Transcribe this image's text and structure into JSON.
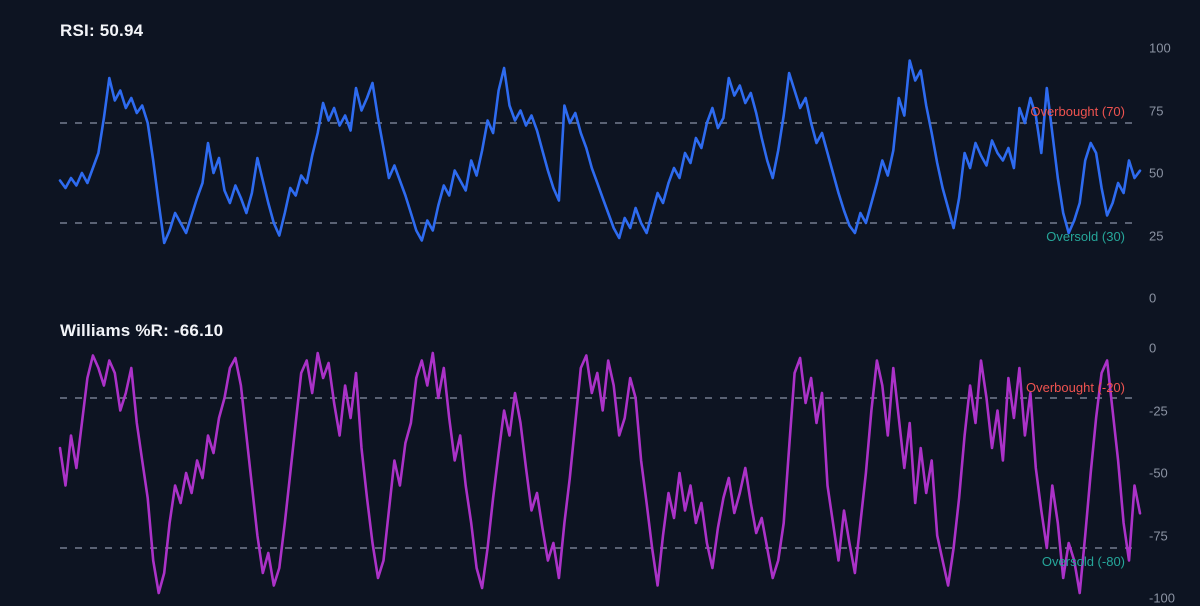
{
  "colors": {
    "background": "#0d1422",
    "rsi_line": "#2e6bf0",
    "williams_line": "#ab32c8",
    "overbought_label": "#ef5350",
    "oversold_label": "#26a69a",
    "tick": "#8b93a3",
    "grid": "#5a6274",
    "title": "#f2f4f8"
  },
  "chart_data": [
    {
      "type": "line",
      "title": "RSI: 50.94",
      "series_name": "RSI",
      "last_value": 50.94,
      "line_color": "#2e6bf0",
      "ylim": [
        0,
        100
      ],
      "yticks": [
        100,
        75,
        50,
        25,
        0
      ],
      "grid": "dashed-thresholds-only",
      "legend_position": "none",
      "thresholds": [
        {
          "label": "Overbought (70)",
          "value": 70,
          "color": "#ef5350"
        },
        {
          "label": "Oversold (30)",
          "value": 30,
          "color": "#26a69a"
        }
      ],
      "values": [
        47,
        44,
        48,
        45,
        50,
        46,
        52,
        58,
        72,
        88,
        79,
        83,
        76,
        80,
        74,
        77,
        70,
        55,
        38,
        22,
        27,
        34,
        30,
        26,
        33,
        40,
        46,
        62,
        50,
        56,
        43,
        38,
        45,
        40,
        34,
        42,
        56,
        47,
        38,
        30,
        25,
        34,
        44,
        41,
        49,
        46,
        57,
        66,
        78,
        71,
        76,
        69,
        73,
        67,
        84,
        75,
        80,
        86,
        72,
        60,
        48,
        53,
        47,
        41,
        34,
        27,
        23,
        31,
        27,
        37,
        45,
        41,
        51,
        47,
        43,
        55,
        49,
        59,
        71,
        66,
        83,
        92,
        77,
        71,
        75,
        69,
        73,
        67,
        59,
        51,
        44,
        39,
        77,
        70,
        74,
        66,
        60,
        52,
        46,
        40,
        34,
        28,
        24,
        32,
        28,
        36,
        30,
        26,
        34,
        42,
        38,
        46,
        52,
        48,
        58,
        54,
        64,
        60,
        70,
        76,
        68,
        72,
        88,
        81,
        85,
        78,
        82,
        74,
        64,
        55,
        48,
        59,
        73,
        90,
        83,
        76,
        80,
        70,
        62,
        66,
        58,
        50,
        42,
        35,
        29,
        26,
        34,
        30,
        38,
        46,
        55,
        49,
        59,
        80,
        73,
        95,
        87,
        91,
        77,
        66,
        54,
        44,
        36,
        28,
        40,
        58,
        52,
        62,
        57,
        53,
        63,
        58,
        55,
        60,
        52,
        76,
        70,
        80,
        73,
        58,
        84,
        66,
        48,
        34,
        26,
        31,
        38,
        55,
        62,
        58,
        44,
        33,
        38,
        46,
        42,
        55,
        48,
        50.94
      ]
    },
    {
      "type": "line",
      "title": "Williams %R: -66.10",
      "series_name": "Williams %R",
      "last_value": -66.1,
      "line_color": "#ab32c8",
      "ylim": [
        -100,
        0
      ],
      "yticks": [
        0,
        -25,
        -50,
        -75,
        -100
      ],
      "grid": "dashed-thresholds-only",
      "legend_position": "none",
      "thresholds": [
        {
          "label": "Overbought (-20)",
          "value": -20,
          "color": "#ef5350"
        },
        {
          "label": "Oversold (-80)",
          "value": -80,
          "color": "#26a69a"
        }
      ],
      "values": [
        -40,
        -55,
        -35,
        -48,
        -30,
        -12,
        -3,
        -8,
        -15,
        -5,
        -10,
        -25,
        -18,
        -8,
        -30,
        -45,
        -60,
        -85,
        -98,
        -90,
        -70,
        -55,
        -62,
        -50,
        -58,
        -45,
        -52,
        -35,
        -42,
        -28,
        -20,
        -8,
        -4,
        -15,
        -35,
        -55,
        -75,
        -90,
        -82,
        -95,
        -88,
        -70,
        -50,
        -30,
        -10,
        -5,
        -18,
        -2,
        -12,
        -6,
        -22,
        -35,
        -15,
        -28,
        -10,
        -40,
        -60,
        -78,
        -92,
        -85,
        -65,
        -45,
        -55,
        -38,
        -30,
        -12,
        -5,
        -15,
        -2,
        -20,
        -8,
        -28,
        -45,
        -35,
        -55,
        -70,
        -88,
        -96,
        -80,
        -60,
        -42,
        -25,
        -35,
        -18,
        -30,
        -48,
        -65,
        -58,
        -72,
        -85,
        -78,
        -92,
        -70,
        -52,
        -30,
        -8,
        -3,
        -18,
        -10,
        -25,
        -5,
        -15,
        -35,
        -28,
        -12,
        -20,
        -45,
        -62,
        -80,
        -95,
        -75,
        -58,
        -68,
        -50,
        -65,
        -55,
        -70,
        -62,
        -78,
        -88,
        -72,
        -60,
        -52,
        -66,
        -58,
        -48,
        -62,
        -74,
        -68,
        -80,
        -92,
        -85,
        -70,
        -40,
        -10,
        -4,
        -22,
        -12,
        -30,
        -18,
        -55,
        -70,
        -85,
        -65,
        -78,
        -90,
        -70,
        -50,
        -25,
        -5,
        -15,
        -35,
        -8,
        -28,
        -48,
        -30,
        -62,
        -40,
        -58,
        -45,
        -75,
        -85,
        -95,
        -80,
        -60,
        -35,
        -15,
        -30,
        -5,
        -20,
        -40,
        -25,
        -45,
        -12,
        -28,
        -8,
        -35,
        -18,
        -48,
        -65,
        -80,
        -55,
        -70,
        -92,
        -78,
        -85,
        -98,
        -75,
        -50,
        -28,
        -10,
        -5,
        -25,
        -45,
        -70,
        -85,
        -55,
        -66.1
      ]
    }
  ]
}
